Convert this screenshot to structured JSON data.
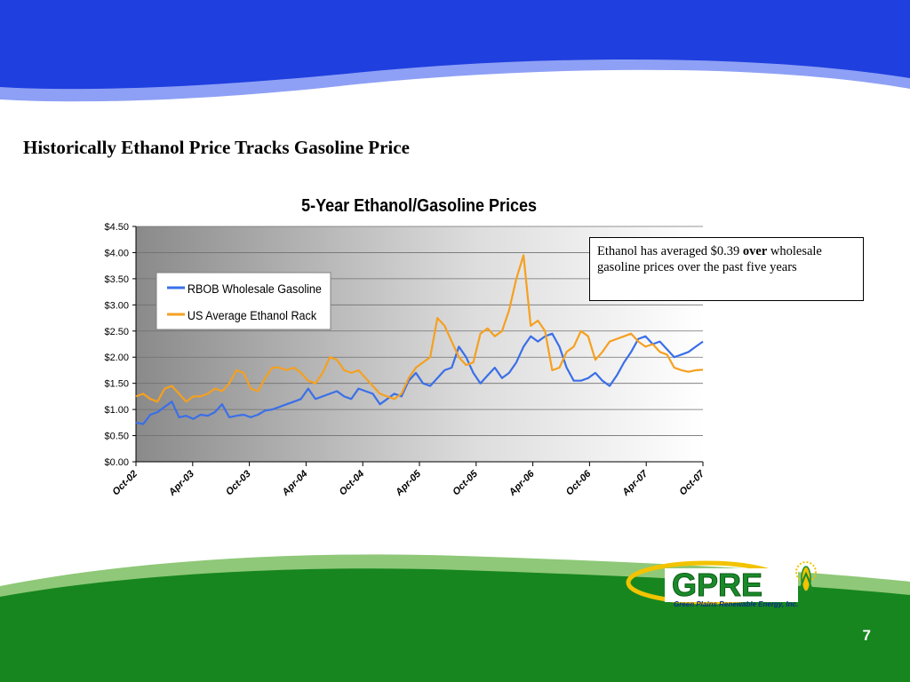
{
  "slide": {
    "title": "Historically Ethanol Price Tracks Gasoline Price",
    "page_number": "7",
    "colors": {
      "header_blue": "#1f3fdf",
      "header_light": "#8ea0f5",
      "footer_green": "#17861f",
      "footer_light": "#8fc878"
    }
  },
  "annotation": {
    "part1": "Ethanol has averaged $0.39 ",
    "bold": "over",
    "part2": " wholesale gasoline prices over the past five years"
  },
  "logo": {
    "name": "GPRE",
    "subtitle": "Green Plains Renewable Energy, Inc.",
    "icon": "corn-sun-icon"
  },
  "chart_data": {
    "type": "line",
    "title": "5-Year Ethanol/Gasoline Prices",
    "ylim": [
      0,
      4.5
    ],
    "yticks": [
      "$0.00",
      "$0.50",
      "$1.00",
      "$1.50",
      "$2.00",
      "$2.50",
      "$3.00",
      "$3.50",
      "$4.00",
      "$4.50"
    ],
    "xticks": [
      "Oct-02",
      "Apr-03",
      "Oct-03",
      "Apr-04",
      "Oct-04",
      "Apr-05",
      "Oct-05",
      "Apr-06",
      "Oct-06",
      "Apr-07",
      "Oct-07"
    ],
    "grid": true,
    "legend_position": "top-left",
    "series": [
      {
        "name": "RBOB Wholesale Gasoline",
        "color": "#3a6fe8",
        "values": [
          0.75,
          0.72,
          0.9,
          0.95,
          1.05,
          1.15,
          0.85,
          0.88,
          0.82,
          0.9,
          0.88,
          0.95,
          1.1,
          0.85,
          0.88,
          0.9,
          0.85,
          0.9,
          0.98,
          1.0,
          1.05,
          1.1,
          1.15,
          1.2,
          1.4,
          1.2,
          1.25,
          1.3,
          1.35,
          1.25,
          1.2,
          1.4,
          1.35,
          1.3,
          1.1,
          1.2,
          1.3,
          1.25,
          1.55,
          1.7,
          1.5,
          1.45,
          1.6,
          1.75,
          1.8,
          2.2,
          2.0,
          1.7,
          1.5,
          1.65,
          1.8,
          1.6,
          1.7,
          1.9,
          2.2,
          2.4,
          2.3,
          2.4,
          2.45,
          2.2,
          1.8,
          1.55,
          1.55,
          1.6,
          1.7,
          1.55,
          1.45,
          1.65,
          1.9,
          2.1,
          2.35,
          2.4,
          2.25,
          2.3,
          2.15,
          2.0,
          2.05,
          2.1,
          2.2,
          2.3
        ]
      },
      {
        "name": "US Average Ethanol Rack",
        "color": "#f5a020",
        "values": [
          1.25,
          1.3,
          1.2,
          1.15,
          1.4,
          1.45,
          1.3,
          1.15,
          1.25,
          1.25,
          1.3,
          1.4,
          1.35,
          1.5,
          1.75,
          1.7,
          1.4,
          1.35,
          1.6,
          1.8,
          1.8,
          1.75,
          1.8,
          1.7,
          1.55,
          1.5,
          1.7,
          2.0,
          1.95,
          1.75,
          1.7,
          1.75,
          1.6,
          1.45,
          1.3,
          1.25,
          1.2,
          1.3,
          1.6,
          1.8,
          1.9,
          2.0,
          2.75,
          2.6,
          2.3,
          2.0,
          1.85,
          1.9,
          2.45,
          2.55,
          2.4,
          2.5,
          2.9,
          3.5,
          3.95,
          2.6,
          2.7,
          2.5,
          1.75,
          1.8,
          2.1,
          2.2,
          2.5,
          2.4,
          1.95,
          2.1,
          2.3,
          2.35,
          2.4,
          2.45,
          2.3,
          2.2,
          2.25,
          2.1,
          2.05,
          1.8,
          1.75,
          1.72,
          1.75,
          1.76
        ]
      }
    ]
  }
}
